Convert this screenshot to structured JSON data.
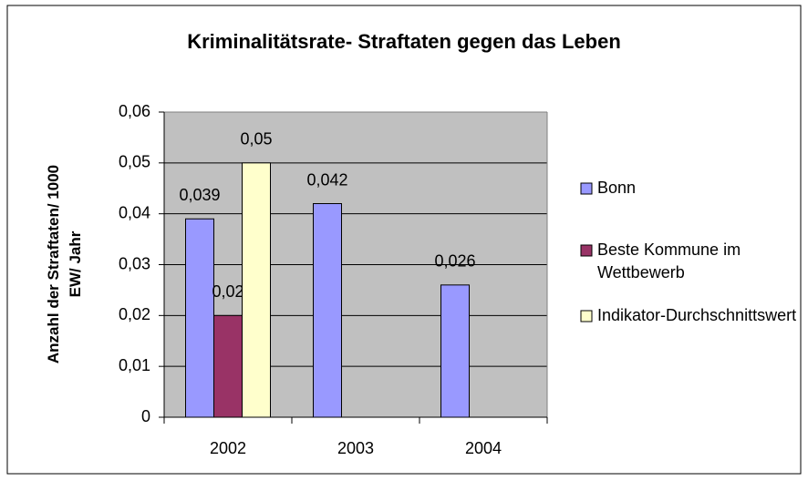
{
  "chart_data": {
    "type": "bar",
    "title": "Kriminalitätsrate- Straftaten gegen das Leben",
    "y_label": "Anzahl der Straftaten/ 1000 EW/ Jahr",
    "categories": [
      "2002",
      "2003",
      "2004"
    ],
    "series": [
      {
        "name": "Bonn",
        "color": "#9999ff",
        "values": [
          0.039,
          0.042,
          0.026
        ],
        "value_labels": [
          "0,039",
          "0,042",
          "0,026"
        ]
      },
      {
        "name": "Beste Kommune im Wettbewerb",
        "color": "#993366",
        "values": [
          0.02,
          null,
          null
        ],
        "value_labels": [
          "0,02",
          null,
          null
        ]
      },
      {
        "name": "Indikator-Durchschnittswert",
        "color": "#ffffcc",
        "values": [
          0.05,
          null,
          null
        ],
        "value_labels": [
          "0,05",
          null,
          null
        ]
      }
    ],
    "ylim": [
      0,
      0.06
    ],
    "yticks": [
      0,
      {
        "value": 0.01,
        "label": "0,01"
      },
      {
        "value": 0.02,
        "label": "0,02"
      },
      {
        "value": 0.03,
        "label": "0,03"
      },
      {
        "value": 0.04,
        "label": "0,04"
      },
      {
        "value": 0.05,
        "label": "0,05"
      },
      {
        "value": 0.06,
        "label": "0,06"
      }
    ],
    "grid": true,
    "plot_background": "#c0c0c0",
    "legend": "right"
  }
}
